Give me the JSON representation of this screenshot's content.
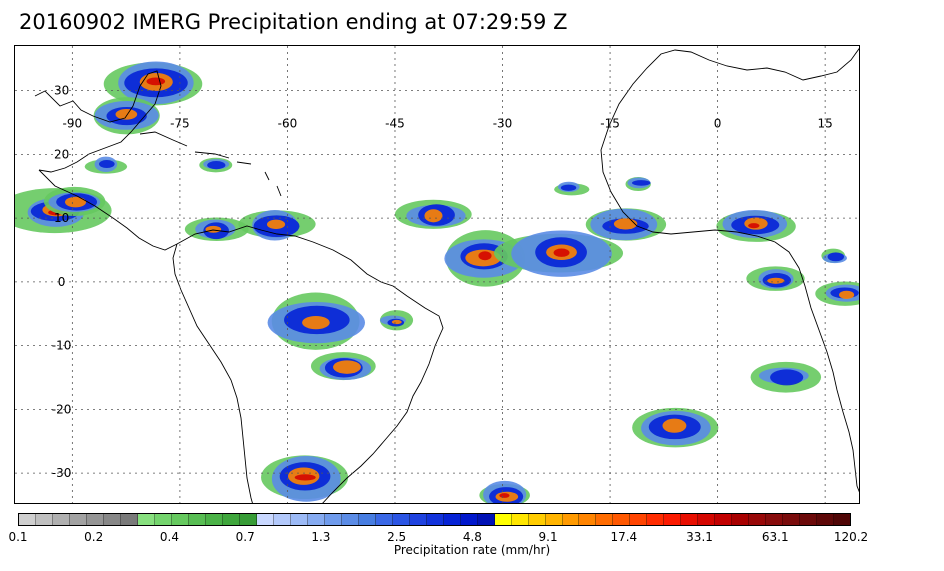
{
  "title": "20160902 IMERG Precipitation ending at 07:29:59 Z",
  "map": {
    "longitude_ticks": [
      "-90",
      "-75",
      "-60",
      "-45",
      "-30",
      "-15",
      "0",
      "15"
    ],
    "longitude_values": [
      -90,
      -75,
      -60,
      -45,
      -30,
      -15,
      0,
      15
    ],
    "latitude_ticks": [
      "30",
      "20",
      "10",
      "0",
      "-10",
      "-20",
      "-30"
    ],
    "latitude_values": [
      30,
      20,
      10,
      0,
      -10,
      -20,
      -30
    ],
    "lon_range": [
      -98,
      20
    ],
    "lat_range": [
      37,
      -35
    ],
    "gridlines": "dotted",
    "coastline_color": "#000000"
  },
  "colorbar": {
    "label": "Precipitation rate (mm/hr)",
    "tick_labels": [
      "0.1",
      "0.2",
      "0.4",
      "0.7",
      "1.3",
      "2.5",
      "4.8",
      "9.1",
      "17.4",
      "33.1",
      "63.1",
      "120.2"
    ],
    "colors": [
      "#cfcfcf",
      "#c0c0c0",
      "#b0b0b0",
      "#a2a2a2",
      "#959595",
      "#878787",
      "#7a7a7a",
      "#88e07f",
      "#74d46d",
      "#66c95f",
      "#58bd53",
      "#4bb247",
      "#3fa63c",
      "#379c36",
      "#c9d8ff",
      "#b3c9fb",
      "#9cbaf6",
      "#86abf1",
      "#6f9bec",
      "#5b8ce6",
      "#477de1",
      "#3a68e6",
      "#2b55e4",
      "#1f43e0",
      "#1233dc",
      "#0623d6",
      "#0017cc",
      "#0011b5",
      "#ffff00",
      "#ffe600",
      "#ffcc00",
      "#ffb400",
      "#ff9a00",
      "#ff8400",
      "#ff6c00",
      "#ff5800",
      "#ff4400",
      "#ff2c00",
      "#fb1a00",
      "#e80e00",
      "#d40600",
      "#c20000",
      "#a80000",
      "#980808",
      "#880c0c",
      "#7a0c0c",
      "#6c0a0a",
      "#5e0808",
      "#500606"
    ]
  }
}
